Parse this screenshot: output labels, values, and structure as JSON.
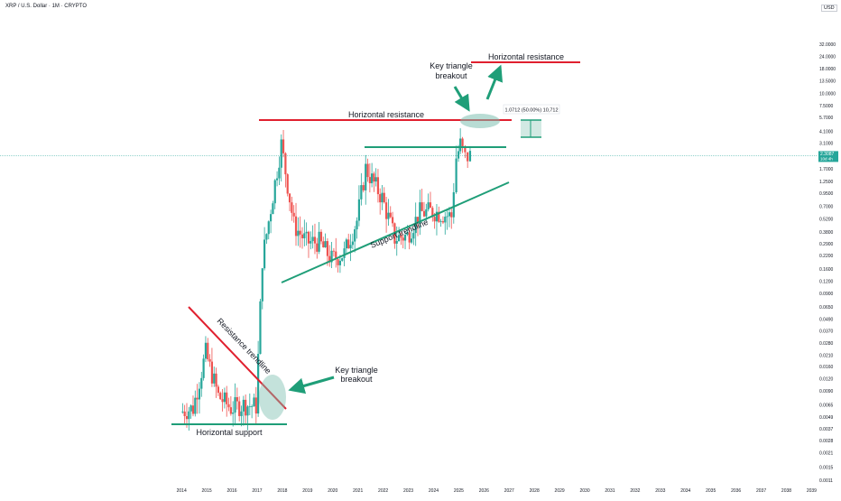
{
  "header": {
    "symbol_title": "XRP / U.S. Dollar · 1M · CRYPTO",
    "currency": "USD"
  },
  "colors": {
    "up": "#26a69a",
    "down": "#ef5350",
    "trend_green": "#1f9e78",
    "resistance_red": "#e0202f",
    "ellipse_fill": "#7dbfb0",
    "price_line": "#26a69a"
  },
  "chart_data": {
    "type": "candlestick",
    "y_scale": "log",
    "ylim": [
      0.0011,
      70
    ],
    "y_ticks": [
      "32.0000",
      "24.0000",
      "18.0000",
      "13.5000",
      "10.0000",
      "7.5000",
      "5.7000",
      "4.1000",
      "3.1000",
      "2.3000",
      "1.7000",
      "1.2500",
      "0.9500",
      "0.7000",
      "0.5200",
      "0.3800",
      "0.2900",
      "0.2200",
      "0.1600",
      "0.1200",
      "0.0900",
      "0.0650",
      "0.0490",
      "0.0370",
      "0.0280",
      "0.0210",
      "0.0160",
      "0.0120",
      "0.0090",
      "0.0065",
      "0.0049",
      "0.0037",
      "0.0028",
      "0.0021",
      "0.0015",
      "0.0011"
    ],
    "x_ticks": [
      "2014",
      "2015",
      "2016",
      "2017",
      "2018",
      "2019",
      "2020",
      "2021",
      "2022",
      "2023",
      "2024",
      "2025",
      "2026",
      "2027",
      "2028",
      "2029",
      "2030",
      "2031",
      "2032",
      "2033",
      "2034",
      "2035",
      "2036",
      "2037",
      "2038",
      "2039"
    ],
    "x_range_years": [
      2013.6,
      2039.2
    ],
    "last_price": {
      "value": "2.3087",
      "countdown": "10d 4h"
    },
    "candles_yearly_closes": [
      {
        "t": 2014.0,
        "p": 0.0055
      },
      {
        "t": 2014.5,
        "p": 0.006
      },
      {
        "t": 2015.0,
        "p": 0.022
      },
      {
        "t": 2015.5,
        "p": 0.008
      },
      {
        "t": 2016.0,
        "p": 0.006
      },
      {
        "t": 2016.5,
        "p": 0.0065
      },
      {
        "t": 2017.0,
        "p": 0.0063
      },
      {
        "t": 2017.25,
        "p": 0.2
      },
      {
        "t": 2018.0,
        "p": 3.0
      },
      {
        "t": 2018.5,
        "p": 0.45
      },
      {
        "t": 2019.0,
        "p": 0.3
      },
      {
        "t": 2019.5,
        "p": 0.3
      },
      {
        "t": 2020.0,
        "p": 0.2
      },
      {
        "t": 2020.5,
        "p": 0.23
      },
      {
        "t": 2021.0,
        "p": 0.5
      },
      {
        "t": 2021.35,
        "p": 1.7
      },
      {
        "t": 2022.0,
        "p": 0.85
      },
      {
        "t": 2022.5,
        "p": 0.33
      },
      {
        "t": 2023.0,
        "p": 0.35
      },
      {
        "t": 2023.5,
        "p": 0.6
      },
      {
        "t": 2024.0,
        "p": 0.62
      },
      {
        "t": 2024.75,
        "p": 0.55
      },
      {
        "t": 2024.95,
        "p": 2.2
      },
      {
        "t": 2025.1,
        "p": 3.0
      },
      {
        "t": 2025.3,
        "p": 2.2
      },
      {
        "t": 2025.5,
        "p": 2.3087
      }
    ],
    "annotations": {
      "horizontal_resistance_mid": "Horizontal resistance",
      "horizontal_resistance_top": "Horizontal resistance",
      "horizontal_support": "Horizontal support",
      "support_trendline": "Support trendline",
      "resistance_trendline": "Resistance trendline",
      "key_breakout_top": [
        "Key triangle",
        "breakout"
      ],
      "key_breakout_bottom": [
        "Key triangle",
        "breakout"
      ],
      "measurement": "1.0712 (50.00%) 10,712"
    }
  }
}
